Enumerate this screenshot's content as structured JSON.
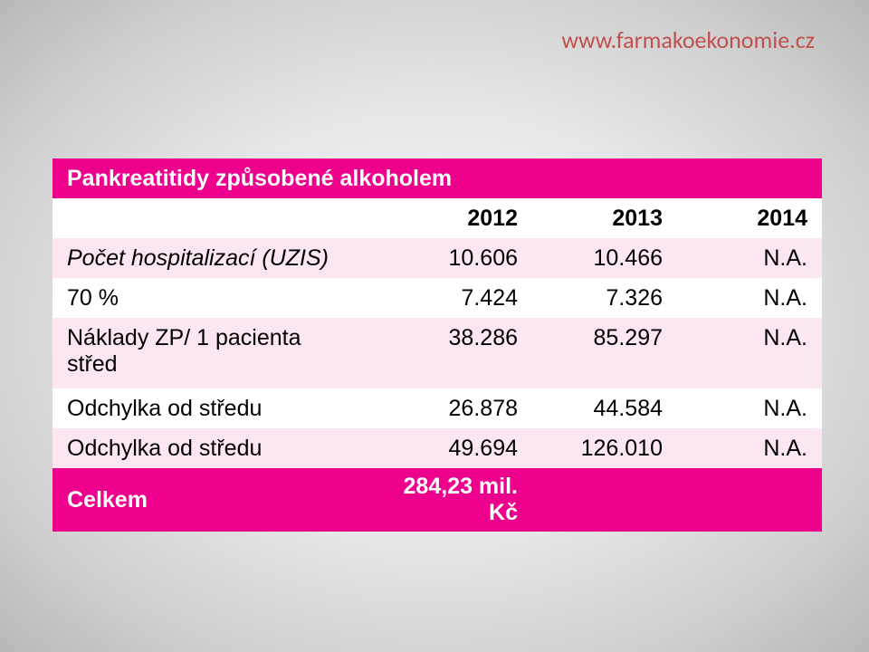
{
  "watermark": "www.farmakoekonomie.cz",
  "table": {
    "header_bg": "#ec008c",
    "header_fg": "#ffffff",
    "row_odd_bg": "#fce6f1",
    "row_even_bg": "#ffffff",
    "title": "Pankreatitidy způsobené alkoholem",
    "years": {
      "c1": "2012",
      "c2": "2013",
      "c3": "2014"
    },
    "rows": [
      {
        "label": "Počet hospitalizací (UZIS)",
        "italic": true,
        "c1": "10.606",
        "c2": "10.466",
        "c3": "N.A."
      },
      {
        "label": "70 %",
        "italic": false,
        "c1": "7.424",
        "c2": "7.326",
        "c3": "N.A."
      },
      {
        "label": "Náklady ZP/ 1 pacienta střed",
        "italic": false,
        "tall": true,
        "c1": "38.286",
        "c2": "85.297",
        "c3": "N.A."
      },
      {
        "label": "Odchylka od středu",
        "italic": false,
        "c1": "26.878",
        "c2": "44.584",
        "c3": "N.A."
      },
      {
        "label": "Odchylka od středu",
        "italic": false,
        "c1": "49.694",
        "c2": "126.010",
        "c3": "N.A."
      }
    ],
    "total": {
      "label": "Celkem",
      "value": "284,23 mil. Kč"
    }
  }
}
